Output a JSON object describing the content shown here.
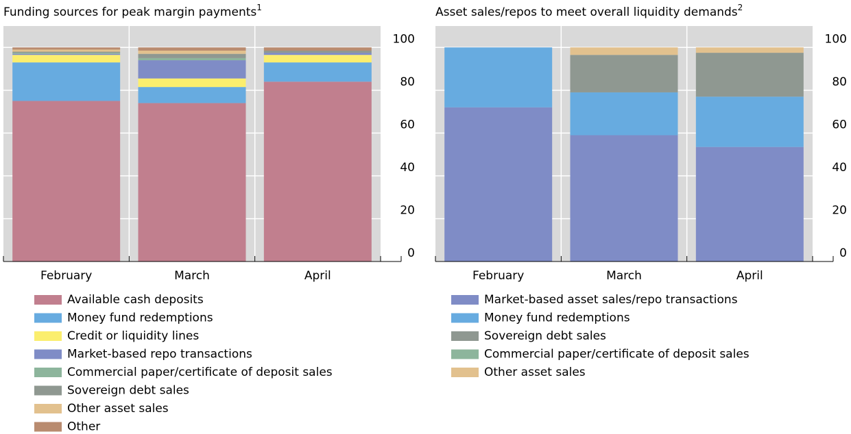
{
  "chart_data": [
    {
      "type": "bar",
      "stacked": true,
      "title": "Funding sources for peak margin payments",
      "title_note": "1",
      "categories": [
        "February",
        "March",
        "April"
      ],
      "series": [
        {
          "name": "Available cash deposits",
          "color": "#c17f8e",
          "values": [
            75,
            74,
            84
          ]
        },
        {
          "name": "Money fund redemptions",
          "color": "#67abe0",
          "values": [
            18,
            7.5,
            9
          ]
        },
        {
          "name": "Credit or liquidity lines",
          "color": "#fbee6e",
          "values": [
            3.5,
            4,
            3.5
          ]
        },
        {
          "name": "Market-based repo transactions",
          "color": "#7f8cc6",
          "values": [
            0.5,
            8.5,
            1
          ]
        },
        {
          "name": "Commercial paper/certificate of deposit sales",
          "color": "#8db59c",
          "values": [
            0.5,
            1,
            0
          ]
        },
        {
          "name": "Sovereign debt sales",
          "color": "#8f9891",
          "values": [
            0.5,
            2,
            1
          ]
        },
        {
          "name": "Other asset sales",
          "color": "#e2c18e",
          "values": [
            1,
            1.5,
            0
          ]
        },
        {
          "name": "Other",
          "color": "#b98b6f",
          "values": [
            1,
            1.5,
            1.5
          ]
        }
      ],
      "ylim": [
        0,
        110
      ],
      "yticks": [
        0,
        20,
        40,
        60,
        80,
        100
      ],
      "grid": true
    },
    {
      "type": "bar",
      "stacked": true,
      "title": "Asset sales/repos to meet overall liquidity demands",
      "title_note": "2",
      "categories": [
        "February",
        "March",
        "April"
      ],
      "series": [
        {
          "name": "Market-based asset sales/repo transactions",
          "color": "#7f8cc6",
          "values": [
            72,
            59,
            53.5
          ]
        },
        {
          "name": "Money fund redemptions",
          "color": "#67abe0",
          "values": [
            28,
            20,
            23.5
          ]
        },
        {
          "name": "Sovereign debt sales",
          "color": "#8f9891",
          "values": [
            0,
            17.5,
            20.5
          ]
        },
        {
          "name": "Commercial paper/certificate of deposit sales",
          "color": "#8db59c",
          "values": [
            0,
            0,
            0
          ]
        },
        {
          "name": "Other asset sales",
          "color": "#e2c18e",
          "values": [
            0,
            3.5,
            2.5
          ]
        }
      ],
      "ylim": [
        0,
        110
      ],
      "yticks": [
        0,
        20,
        40,
        60,
        80,
        100
      ],
      "grid": true
    }
  ]
}
